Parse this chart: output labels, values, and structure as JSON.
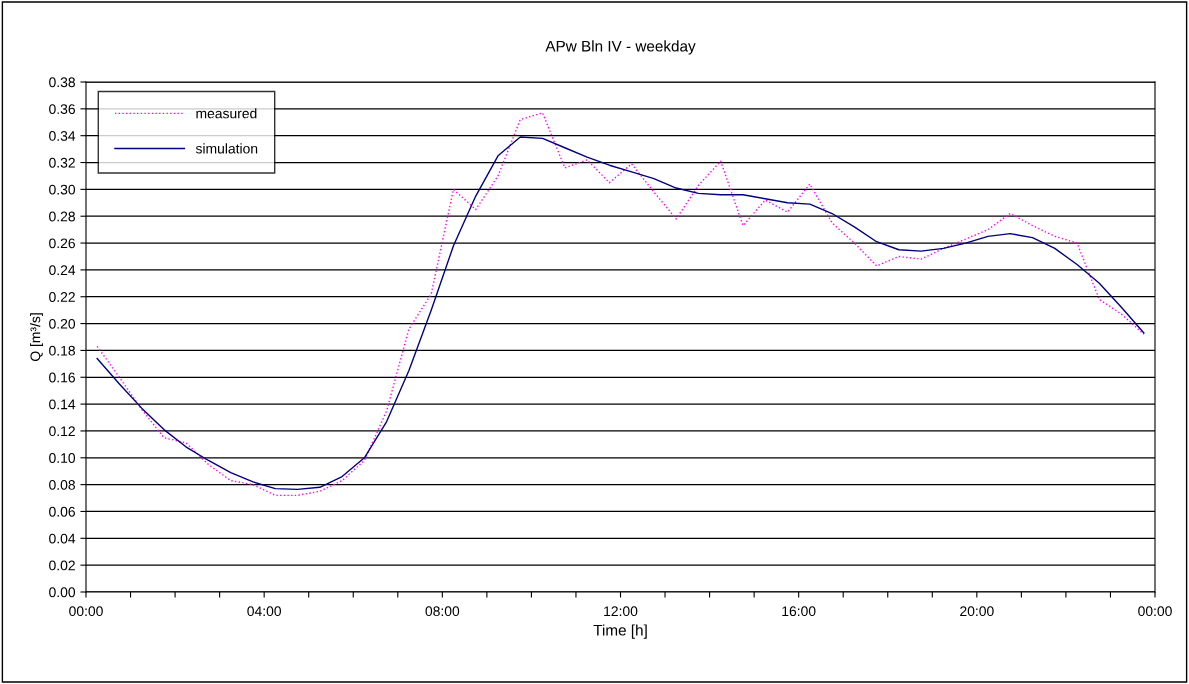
{
  "chart_data": {
    "type": "line",
    "title": "APw Bln IV - weekday",
    "xlabel": "Time [h]",
    "ylabel": "Q [m³/s]",
    "x": [
      0.25,
      0.75,
      1.25,
      1.75,
      2.25,
      2.75,
      3.25,
      3.75,
      4.25,
      4.75,
      5.25,
      5.75,
      6.25,
      6.75,
      7.25,
      7.75,
      8.25,
      8.75,
      9.25,
      9.75,
      10.25,
      10.75,
      11.25,
      11.75,
      12.25,
      12.75,
      13.25,
      13.75,
      14.25,
      14.75,
      15.25,
      15.75,
      16.25,
      16.75,
      17.25,
      17.75,
      18.25,
      18.75,
      19.25,
      19.75,
      20.25,
      20.75,
      21.25,
      21.75,
      22.25,
      22.75,
      23.25,
      23.75
    ],
    "series": [
      {
        "name": "measured",
        "color": "#ff00ff",
        "line_style": "dotted",
        "values": [
          0.183,
          0.16,
          0.136,
          0.115,
          0.111,
          0.095,
          0.083,
          0.08,
          0.072,
          0.072,
          0.075,
          0.083,
          0.098,
          0.135,
          0.196,
          0.222,
          0.3,
          0.285,
          0.31,
          0.352,
          0.357,
          0.316,
          0.322,
          0.305,
          0.319,
          0.298,
          0.278,
          0.303,
          0.321,
          0.273,
          0.292,
          0.283,
          0.304,
          0.275,
          0.26,
          0.243,
          0.25,
          0.248,
          0.256,
          0.263,
          0.27,
          0.282,
          0.273,
          0.265,
          0.26,
          0.218,
          0.207,
          0.192
        ]
      },
      {
        "name": "simulation",
        "color": "#000080",
        "line_style": "solid",
        "values": [
          0.174,
          0.155,
          0.137,
          0.121,
          0.108,
          0.098,
          0.089,
          0.082,
          0.077,
          0.0765,
          0.078,
          0.086,
          0.1,
          0.127,
          0.165,
          0.21,
          0.258,
          0.295,
          0.325,
          0.339,
          0.338,
          0.331,
          0.324,
          0.318,
          0.313,
          0.308,
          0.301,
          0.297,
          0.296,
          0.296,
          0.293,
          0.29,
          0.289,
          0.282,
          0.272,
          0.261,
          0.255,
          0.254,
          0.256,
          0.26,
          0.265,
          0.267,
          0.264,
          0.256,
          0.244,
          0.23,
          0.212,
          0.193
        ]
      }
    ],
    "xlim": [
      0,
      24
    ],
    "xticks": [
      {
        "value": 0,
        "label": "00:00"
      },
      {
        "value": 1,
        "label": null
      },
      {
        "value": 2,
        "label": null
      },
      {
        "value": 3,
        "label": null
      },
      {
        "value": 4,
        "label": "04:00"
      },
      {
        "value": 5,
        "label": null
      },
      {
        "value": 6,
        "label": null
      },
      {
        "value": 7,
        "label": null
      },
      {
        "value": 8,
        "label": "08:00"
      },
      {
        "value": 9,
        "label": null
      },
      {
        "value": 10,
        "label": null
      },
      {
        "value": 11,
        "label": null
      },
      {
        "value": 12,
        "label": "12:00"
      },
      {
        "value": 13,
        "label": null
      },
      {
        "value": 14,
        "label": null
      },
      {
        "value": 15,
        "label": null
      },
      {
        "value": 16,
        "label": "16:00"
      },
      {
        "value": 17,
        "label": null
      },
      {
        "value": 18,
        "label": null
      },
      {
        "value": 19,
        "label": null
      },
      {
        "value": 20,
        "label": "20:00"
      },
      {
        "value": 21,
        "label": null
      },
      {
        "value": 22,
        "label": null
      },
      {
        "value": 23,
        "label": null
      },
      {
        "value": 24,
        "label": "00:00"
      }
    ],
    "ylim": [
      0,
      0.38
    ],
    "yticks": [
      {
        "value": 0,
        "label": "0.00"
      },
      {
        "value": 0.02,
        "label": "0.02"
      },
      {
        "value": 0.04,
        "label": "0.04"
      },
      {
        "value": 0.06,
        "label": "0.06"
      },
      {
        "value": 0.08,
        "label": "0.08"
      },
      {
        "value": 0.1,
        "label": "0.10"
      },
      {
        "value": 0.12,
        "label": "0.12"
      },
      {
        "value": 0.14,
        "label": "0.14"
      },
      {
        "value": 0.16,
        "label": "0.16"
      },
      {
        "value": 0.18,
        "label": "0.18"
      },
      {
        "value": 0.2,
        "label": "0.20"
      },
      {
        "value": 0.22,
        "label": "0.22"
      },
      {
        "value": 0.24,
        "label": "0.24"
      },
      {
        "value": 0.26,
        "label": "0.26"
      },
      {
        "value": 0.28,
        "label": "0.28"
      },
      {
        "value": 0.3,
        "label": "0.30"
      },
      {
        "value": 0.32,
        "label": "0.32"
      },
      {
        "value": 0.34,
        "label": "0.34"
      },
      {
        "value": 0.36,
        "label": "0.36"
      },
      {
        "value": 0.38,
        "label": "0.38"
      }
    ],
    "grid": "y",
    "legend": "top left"
  }
}
